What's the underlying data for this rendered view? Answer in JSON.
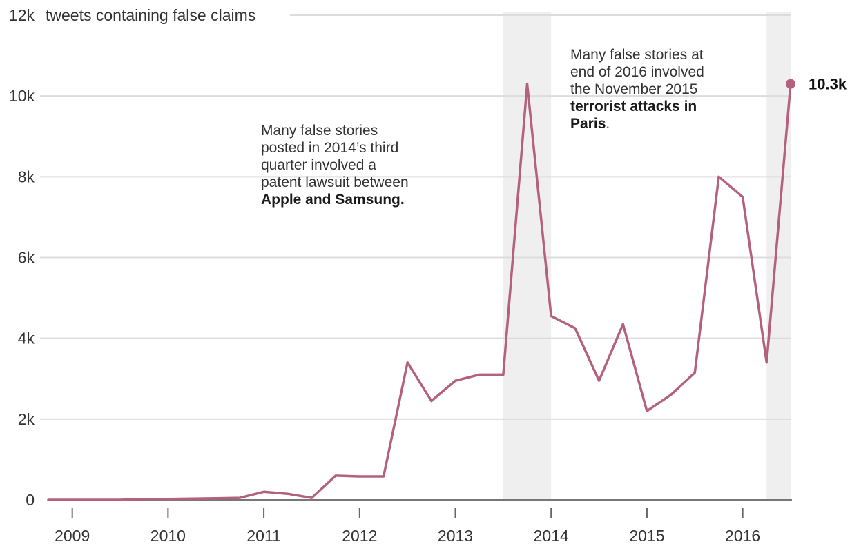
{
  "chart_data": {
    "type": "line",
    "ylabel": "tweets containing false claims",
    "ylim": [
      0,
      12000
    ],
    "y_ticks": [
      {
        "value": 0,
        "label": "0"
      },
      {
        "value": 2000,
        "label": "2k"
      },
      {
        "value": 4000,
        "label": "4k"
      },
      {
        "value": 6000,
        "label": "6k"
      },
      {
        "value": 8000,
        "label": "8k"
      },
      {
        "value": 10000,
        "label": "10k"
      },
      {
        "value": 12000,
        "label": "12k"
      }
    ],
    "xlim": [
      2008.75,
      2016.5
    ],
    "x_ticks": [
      {
        "value": 2009,
        "label": "2009"
      },
      {
        "value": 2010,
        "label": "2010"
      },
      {
        "value": 2011,
        "label": "2011"
      },
      {
        "value": 2012,
        "label": "2012"
      },
      {
        "value": 2013,
        "label": "2013"
      },
      {
        "value": 2014,
        "label": "2014"
      },
      {
        "value": 2015,
        "label": "2015"
      },
      {
        "value": 2016,
        "label": "2016"
      }
    ],
    "grid": true,
    "color": "#b3617c",
    "series": [
      {
        "x": [
          2008.75,
          2009.0,
          2009.25,
          2009.5,
          2009.75,
          2010.0,
          2010.25,
          2010.5,
          2010.75,
          2011.0,
          2011.25,
          2011.5,
          2011.75,
          2012.0,
          2012.25,
          2012.5,
          2012.75,
          2013.0,
          2013.25,
          2013.5,
          2013.75,
          2014.0,
          2014.25,
          2014.5,
          2014.75,
          2015.0,
          2015.25,
          2015.5,
          2015.75,
          2016.0,
          2016.25,
          2016.5
        ],
        "values": [
          0,
          0,
          0,
          0,
          20,
          20,
          30,
          40,
          50,
          200,
          150,
          50,
          600,
          580,
          580,
          3400,
          2450,
          2950,
          3100,
          3100,
          10300,
          4550,
          4250,
          2950,
          4350,
          2200,
          2600,
          3150,
          8000,
          7500,
          3400,
          10300
        ]
      }
    ],
    "highlight_bands": [
      {
        "x_start": 2013.5,
        "x_end": 2014.0
      },
      {
        "x_start": 2016.25,
        "x_end": 2016.5
      }
    ],
    "end_label": {
      "x": 2016.5,
      "value": 10300,
      "text": "10.3k"
    },
    "annotations": [
      {
        "lines": [
          [
            {
              "text": "Many false stories",
              "bold": false
            }
          ],
          [
            {
              "text": "posted in 2014’s third",
              "bold": false
            }
          ],
          [
            {
              "text": "quarter involved a",
              "bold": false
            }
          ],
          [
            {
              "text": "patent lawsuit between",
              "bold": false
            }
          ],
          [
            {
              "text": "Apple and Samsung.",
              "bold": true
            }
          ]
        ]
      },
      {
        "lines": [
          [
            {
              "text": "Many false stories at",
              "bold": false
            }
          ],
          [
            {
              "text": "end of 2016 involved",
              "bold": false
            }
          ],
          [
            {
              "text": "the November 2015",
              "bold": false
            }
          ],
          [
            {
              "text": "terrorist attacks in",
              "bold": true
            }
          ],
          [
            {
              "text": "Paris",
              "bold": true
            },
            {
              "text": ".",
              "bold": false
            }
          ]
        ]
      }
    ]
  }
}
